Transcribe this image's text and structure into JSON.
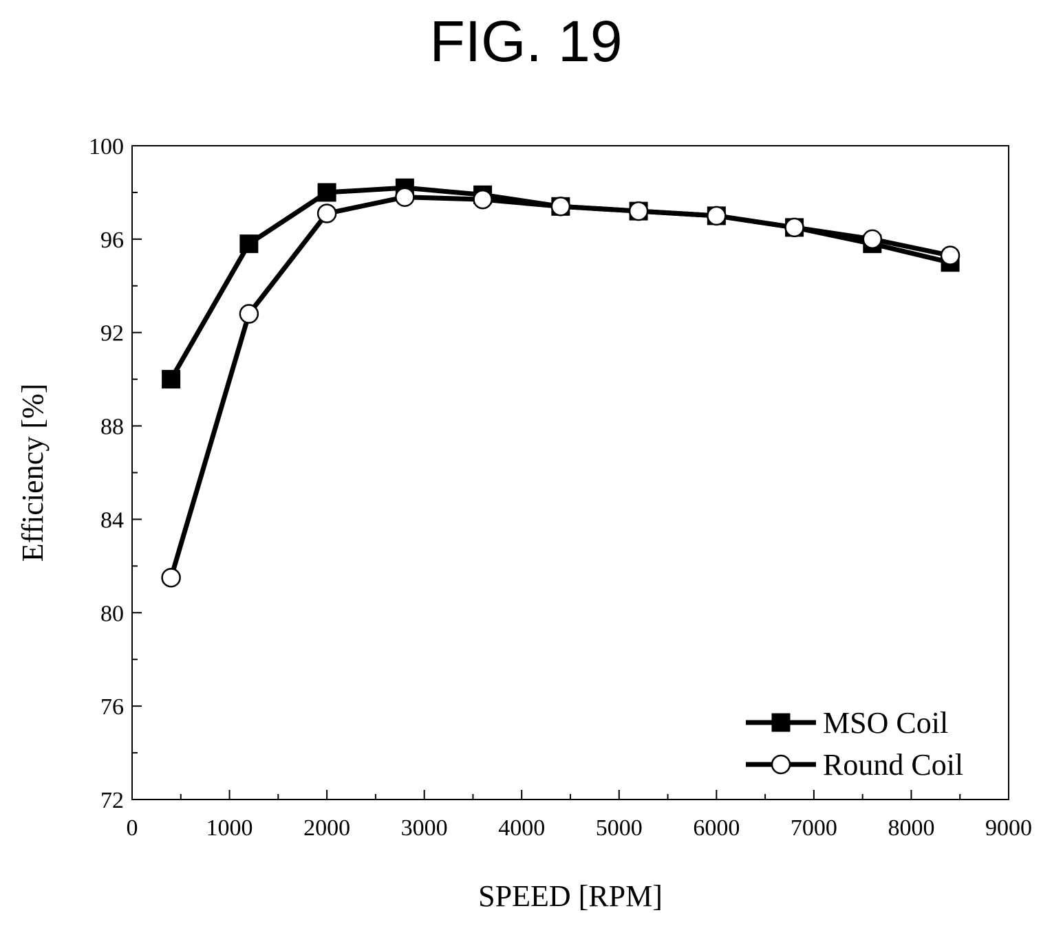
{
  "figure": {
    "title": "FIG. 19"
  },
  "chart_data": {
    "type": "line",
    "xlabel": "SPEED [RPM]",
    "ylabel": "Efficiency [%]",
    "xlim": [
      0,
      9000
    ],
    "ylim": [
      72,
      100
    ],
    "xticks": [
      0,
      1000,
      2000,
      3000,
      4000,
      5000,
      6000,
      7000,
      8000,
      9000
    ],
    "yticks": [
      72,
      76,
      80,
      84,
      88,
      92,
      96,
      100
    ],
    "x_minor_step": 500,
    "y_minor_step": 2,
    "grid": false,
    "legend_position": "bottom-right",
    "series": [
      {
        "name": "MSO Coil",
        "marker": "filled-square",
        "color": "#000000",
        "x": [
          400,
          1200,
          2000,
          2800,
          3600,
          4400,
          5200,
          6000,
          6800,
          7600,
          8400
        ],
        "y": [
          90.0,
          95.8,
          98.0,
          98.2,
          97.9,
          97.4,
          97.2,
          97.0,
          96.5,
          95.8,
          95.0
        ]
      },
      {
        "name": "Round Coil",
        "marker": "open-circle",
        "color": "#000000",
        "x": [
          400,
          1200,
          2000,
          2800,
          3600,
          4400,
          5200,
          6000,
          6800,
          7600,
          8400
        ],
        "y": [
          81.5,
          92.8,
          97.1,
          97.8,
          97.7,
          97.4,
          97.2,
          97.0,
          96.5,
          96.0,
          95.3
        ]
      }
    ]
  }
}
